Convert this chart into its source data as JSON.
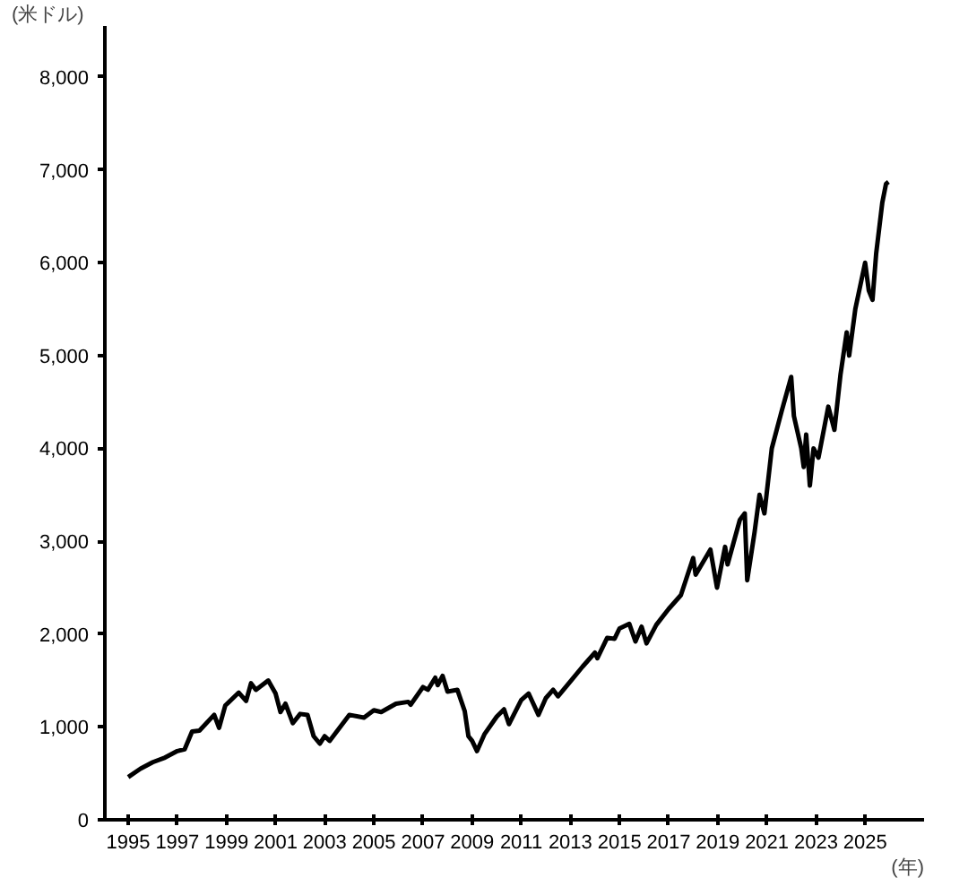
{
  "chart_data": {
    "type": "line",
    "ylabel": "(米ドル)",
    "xlim": [
      1994.05,
      2027.4
    ],
    "ylim": [
      0,
      8550
    ],
    "xticks": [
      1995,
      1997,
      1999,
      2001,
      2003,
      2005,
      2007,
      2009,
      2011,
      2013,
      2015,
      2017,
      2019,
      2021,
      2023,
      2025
    ],
    "xlabel": "(年)",
    "yticks": [
      0,
      {
        "value": 1000,
        "label": "1,000"
      },
      {
        "value": 2000,
        "label": "2,000"
      },
      {
        "value": 3000,
        "label": "3,000"
      },
      {
        "value": 4000,
        "label": "4,000"
      },
      {
        "value": 5000,
        "label": "5,000"
      },
      {
        "value": 6000,
        "label": "6,000"
      },
      {
        "value": 7000,
        "label": "7,000"
      },
      {
        "value": 8000,
        "label": "8,000"
      }
    ],
    "grid": false,
    "marker": "none",
    "line_style": "solid",
    "series": [
      {
        "color": "#000000",
        "x": [
          1995.0,
          1995.5,
          1996.0,
          1996.5,
          1997.0,
          1997.3,
          1997.6,
          1997.9,
          1998.5,
          1998.7,
          1998.95,
          1999.5,
          1999.8,
          2000.0,
          2000.2,
          2000.7,
          2001.0,
          2001.2,
          2001.4,
          2001.7,
          2002.0,
          2002.3,
          2002.55,
          2002.8,
          2003.0,
          2003.2,
          2003.6,
          2004.0,
          2004.6,
          2005.0,
          2005.3,
          2005.9,
          2006.4,
          2006.5,
          2007.0,
          2007.2,
          2007.5,
          2007.6,
          2007.8,
          2008.0,
          2008.4,
          2008.7,
          2008.85,
          2009.0,
          2009.2,
          2009.5,
          2010.0,
          2010.3,
          2010.5,
          2011.0,
          2011.3,
          2011.7,
          2012.0,
          2012.3,
          2012.5,
          2013.0,
          2013.5,
          2014.0,
          2014.1,
          2014.5,
          2014.8,
          2015.0,
          2015.4,
          2015.65,
          2015.9,
          2016.1,
          2016.5,
          2017.0,
          2017.5,
          2018.0,
          2018.1,
          2018.7,
          2018.97,
          2019.3,
          2019.4,
          2019.9,
          2020.1,
          2020.2,
          2020.5,
          2020.7,
          2020.9,
          2021.2,
          2021.6,
          2021.99,
          2022.1,
          2022.4,
          2022.5,
          2022.6,
          2022.75,
          2022.9,
          2023.1,
          2023.5,
          2023.75,
          2024.0,
          2024.25,
          2024.35,
          2024.6,
          2025.0,
          2025.15,
          2025.3,
          2025.45,
          2025.7,
          2025.85,
          2025.95
        ],
        "values": [
          460,
          550,
          620,
          670,
          740,
          760,
          950,
          960,
          1130,
          990,
          1230,
          1370,
          1280,
          1470,
          1400,
          1500,
          1360,
          1160,
          1250,
          1040,
          1140,
          1130,
          900,
          820,
          900,
          850,
          990,
          1130,
          1100,
          1180,
          1160,
          1250,
          1270,
          1240,
          1430,
          1400,
          1530,
          1450,
          1550,
          1380,
          1400,
          1170,
          900,
          850,
          740,
          920,
          1110,
          1190,
          1030,
          1290,
          1360,
          1130,
          1310,
          1400,
          1330,
          1490,
          1650,
          1800,
          1740,
          1960,
          1950,
          2060,
          2110,
          1920,
          2080,
          1900,
          2100,
          2270,
          2420,
          2820,
          2640,
          2910,
          2500,
          2940,
          2750,
          3230,
          3300,
          2580,
          3100,
          3500,
          3300,
          4000,
          4400,
          4770,
          4350,
          4000,
          3800,
          4150,
          3600,
          4000,
          3900,
          4450,
          4200,
          4800,
          5250,
          5000,
          5500,
          6000,
          5700,
          5600,
          6100,
          6650,
          6850,
          6870
        ]
      }
    ]
  }
}
